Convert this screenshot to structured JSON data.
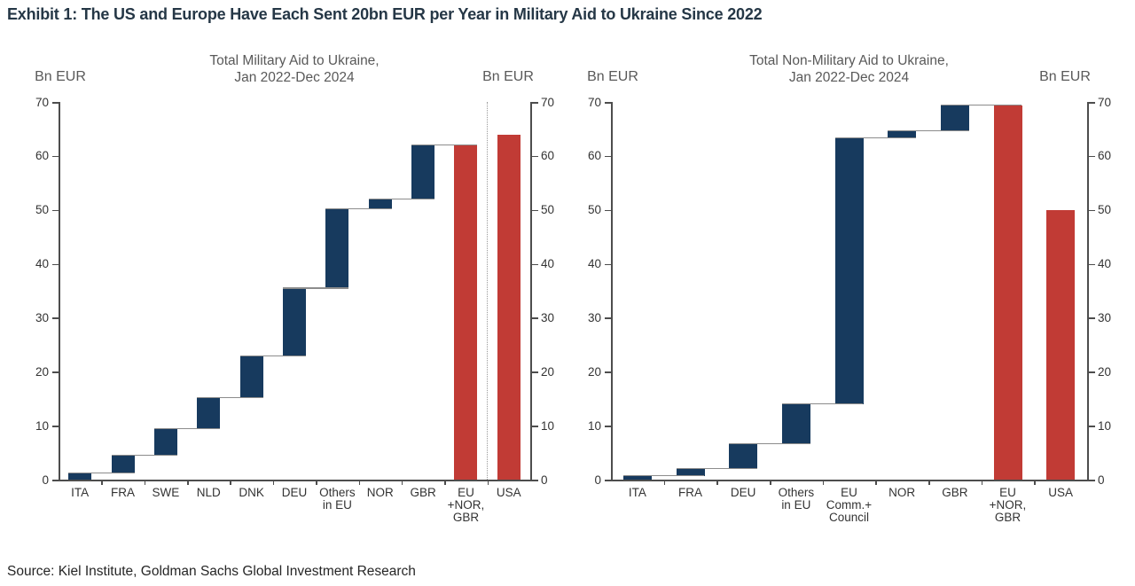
{
  "title": "Exhibit 1: The US and Europe Have Each Sent 20bn EUR per Year in Military Aid to Ukraine Since 2022",
  "source": "Source: Kiel Institute, Goldman Sachs Global Investment Research",
  "colors": {
    "navy": "#173a5e",
    "red": "#c13b35",
    "axis": "#4d4d4d",
    "connector": "#8c8c8c"
  },
  "chart_data": [
    {
      "type": "bar",
      "subtype": "waterfall",
      "title_lines": [
        "Total Military Aid to Ukraine,",
        "Jan 2022-Dec 2024"
      ],
      "y_axis_label_left": "Bn EUR",
      "y_axis_label_right": "Bn EUR",
      "ylim": [
        0,
        70
      ],
      "yticks": [
        0,
        10,
        20,
        30,
        40,
        50,
        60,
        70
      ],
      "grid": false,
      "divider_before": "USA",
      "steps": [
        {
          "label_lines": [
            "ITA"
          ],
          "from": 0,
          "to": 1.2,
          "color": "navy"
        },
        {
          "label_lines": [
            "FRA"
          ],
          "from": 1.2,
          "to": 4.5,
          "color": "navy"
        },
        {
          "label_lines": [
            "SWE"
          ],
          "from": 4.5,
          "to": 9.4,
          "color": "navy"
        },
        {
          "label_lines": [
            "NLD"
          ],
          "from": 9.4,
          "to": 15.2,
          "color": "navy"
        },
        {
          "label_lines": [
            "DNK"
          ],
          "from": 15.2,
          "to": 22.9,
          "color": "navy"
        },
        {
          "label_lines": [
            "DEU"
          ],
          "from": 22.9,
          "to": 35.5,
          "color": "navy"
        },
        {
          "label_lines": [
            "Others",
            "in EU"
          ],
          "from": 35.5,
          "to": 50.2,
          "color": "navy"
        },
        {
          "label_lines": [
            "NOR"
          ],
          "from": 50.2,
          "to": 52.0,
          "color": "navy"
        },
        {
          "label_lines": [
            "GBR"
          ],
          "from": 52.0,
          "to": 62.0,
          "color": "navy"
        },
        {
          "label_lines": [
            "EU",
            "+NOR,",
            "GBR"
          ],
          "from": 0,
          "to": 62.0,
          "color": "red",
          "total": true
        },
        {
          "label_lines": [
            "USA"
          ],
          "from": 0,
          "to": 64.0,
          "color": "red",
          "total": true
        }
      ]
    },
    {
      "type": "bar",
      "subtype": "waterfall",
      "title_lines": [
        "Total Non-Military Aid to Ukraine,",
        "Jan 2022-Dec 2024"
      ],
      "y_axis_label_left": "Bn EUR",
      "y_axis_label_right": "Bn EUR",
      "ylim": [
        0,
        70
      ],
      "yticks": [
        0,
        10,
        20,
        30,
        40,
        50,
        60,
        70
      ],
      "grid": false,
      "divider_before": null,
      "steps": [
        {
          "label_lines": [
            "ITA"
          ],
          "from": 0,
          "to": 0.7,
          "color": "navy"
        },
        {
          "label_lines": [
            "FRA"
          ],
          "from": 0.7,
          "to": 2.1,
          "color": "navy"
        },
        {
          "label_lines": [
            "DEU"
          ],
          "from": 2.1,
          "to": 6.7,
          "color": "navy"
        },
        {
          "label_lines": [
            "Others",
            "in EU"
          ],
          "from": 6.7,
          "to": 14.0,
          "color": "navy"
        },
        {
          "label_lines": [
            "EU",
            "Comm.+",
            "Council"
          ],
          "from": 14.0,
          "to": 63.3,
          "color": "navy"
        },
        {
          "label_lines": [
            "NOR"
          ],
          "from": 63.3,
          "to": 64.7,
          "color": "navy"
        },
        {
          "label_lines": [
            "GBR"
          ],
          "from": 64.7,
          "to": 69.4,
          "color": "navy"
        },
        {
          "label_lines": [
            "EU",
            "+NOR,",
            "GBR"
          ],
          "from": 0,
          "to": 69.4,
          "color": "red",
          "total": true
        },
        {
          "label_lines": [
            "USA"
          ],
          "from": 0,
          "to": 50.0,
          "color": "red",
          "total": true
        }
      ]
    }
  ]
}
